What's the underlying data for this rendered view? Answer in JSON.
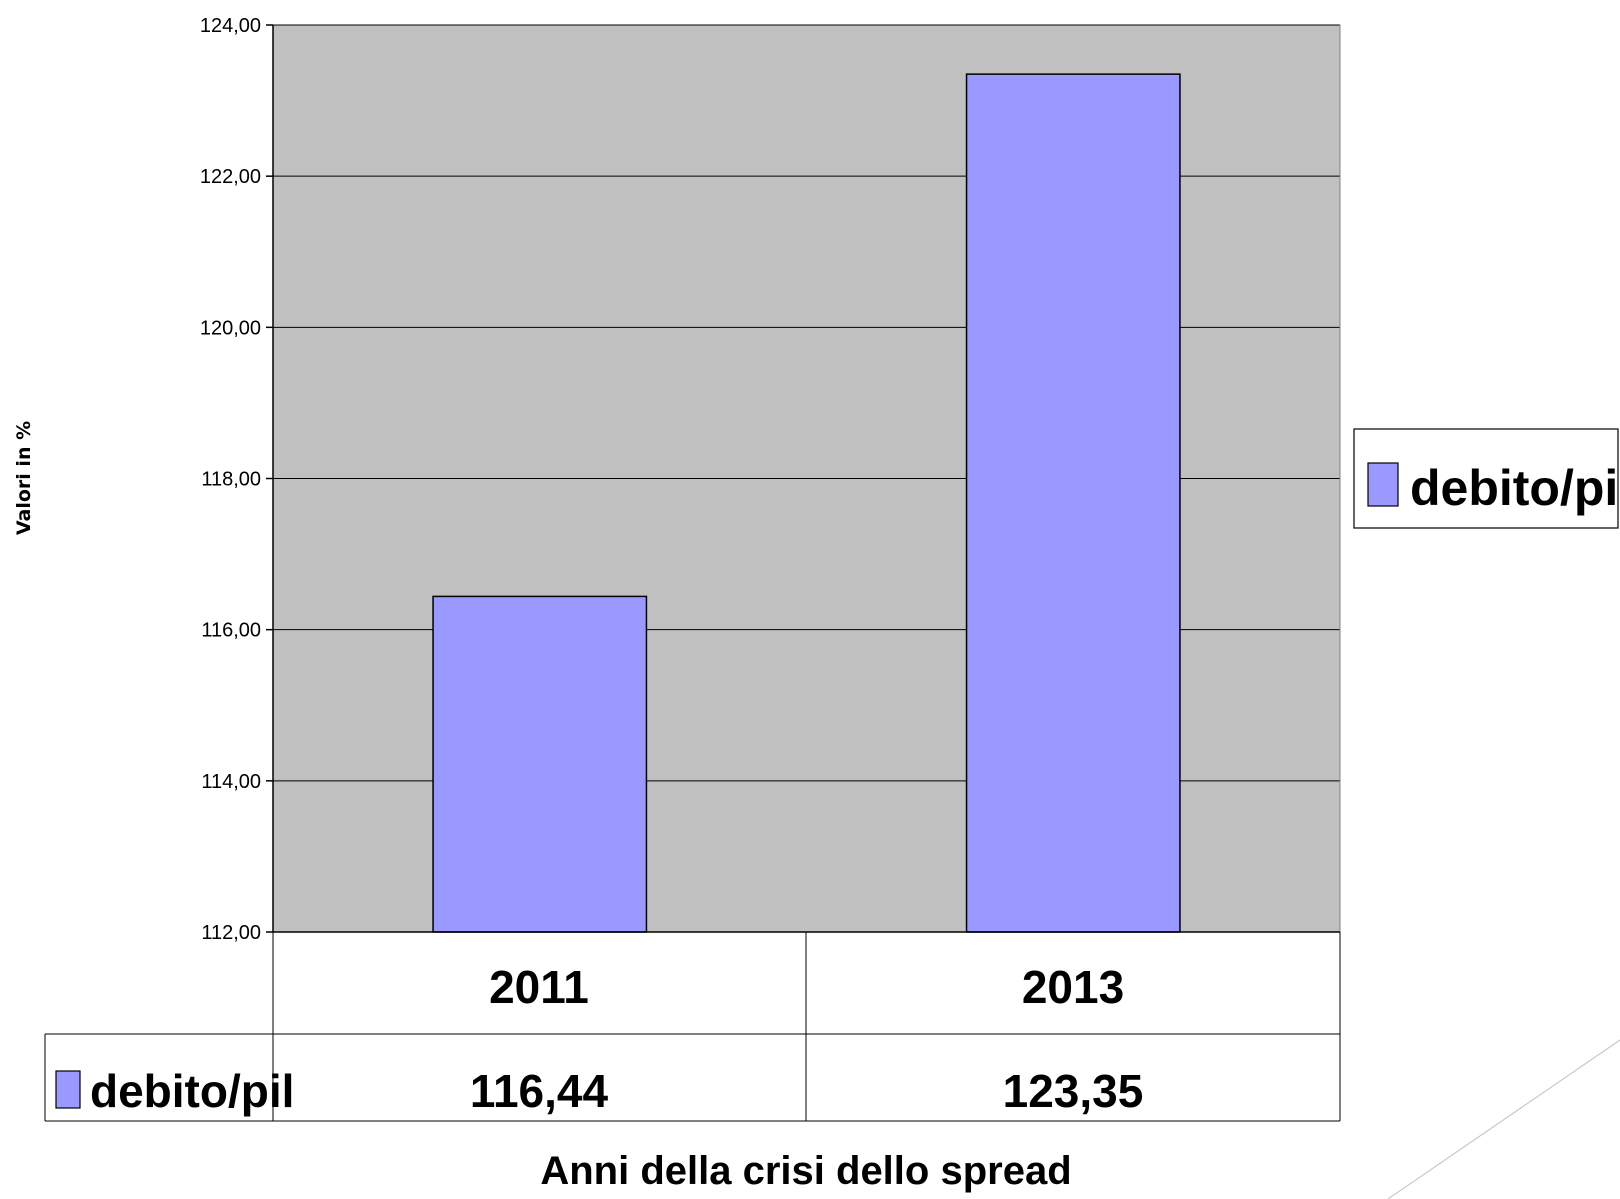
{
  "chart_data": {
    "type": "bar",
    "categories": [
      "2011",
      "2013"
    ],
    "series": [
      {
        "name": "debito/pil",
        "values": [
          116.44,
          123.35
        ],
        "value_labels": [
          "116,44",
          "123,35"
        ],
        "color": "#9999ff"
      }
    ],
    "ylim": [
      112,
      124
    ],
    "yticks": [
      112,
      114,
      116,
      118,
      120,
      122,
      124
    ],
    "ytick_labels": [
      "112,00",
      "114,00",
      "116,00",
      "118,00",
      "120,00",
      "122,00",
      "124,00"
    ],
    "ylabel": "Valori in %",
    "xlabel": "Anni della crisi dello spread",
    "legend": {
      "label": "debito/pil",
      "position": "right"
    },
    "grid": true,
    "plot_background": "#c0c0c0",
    "data_table": true
  }
}
